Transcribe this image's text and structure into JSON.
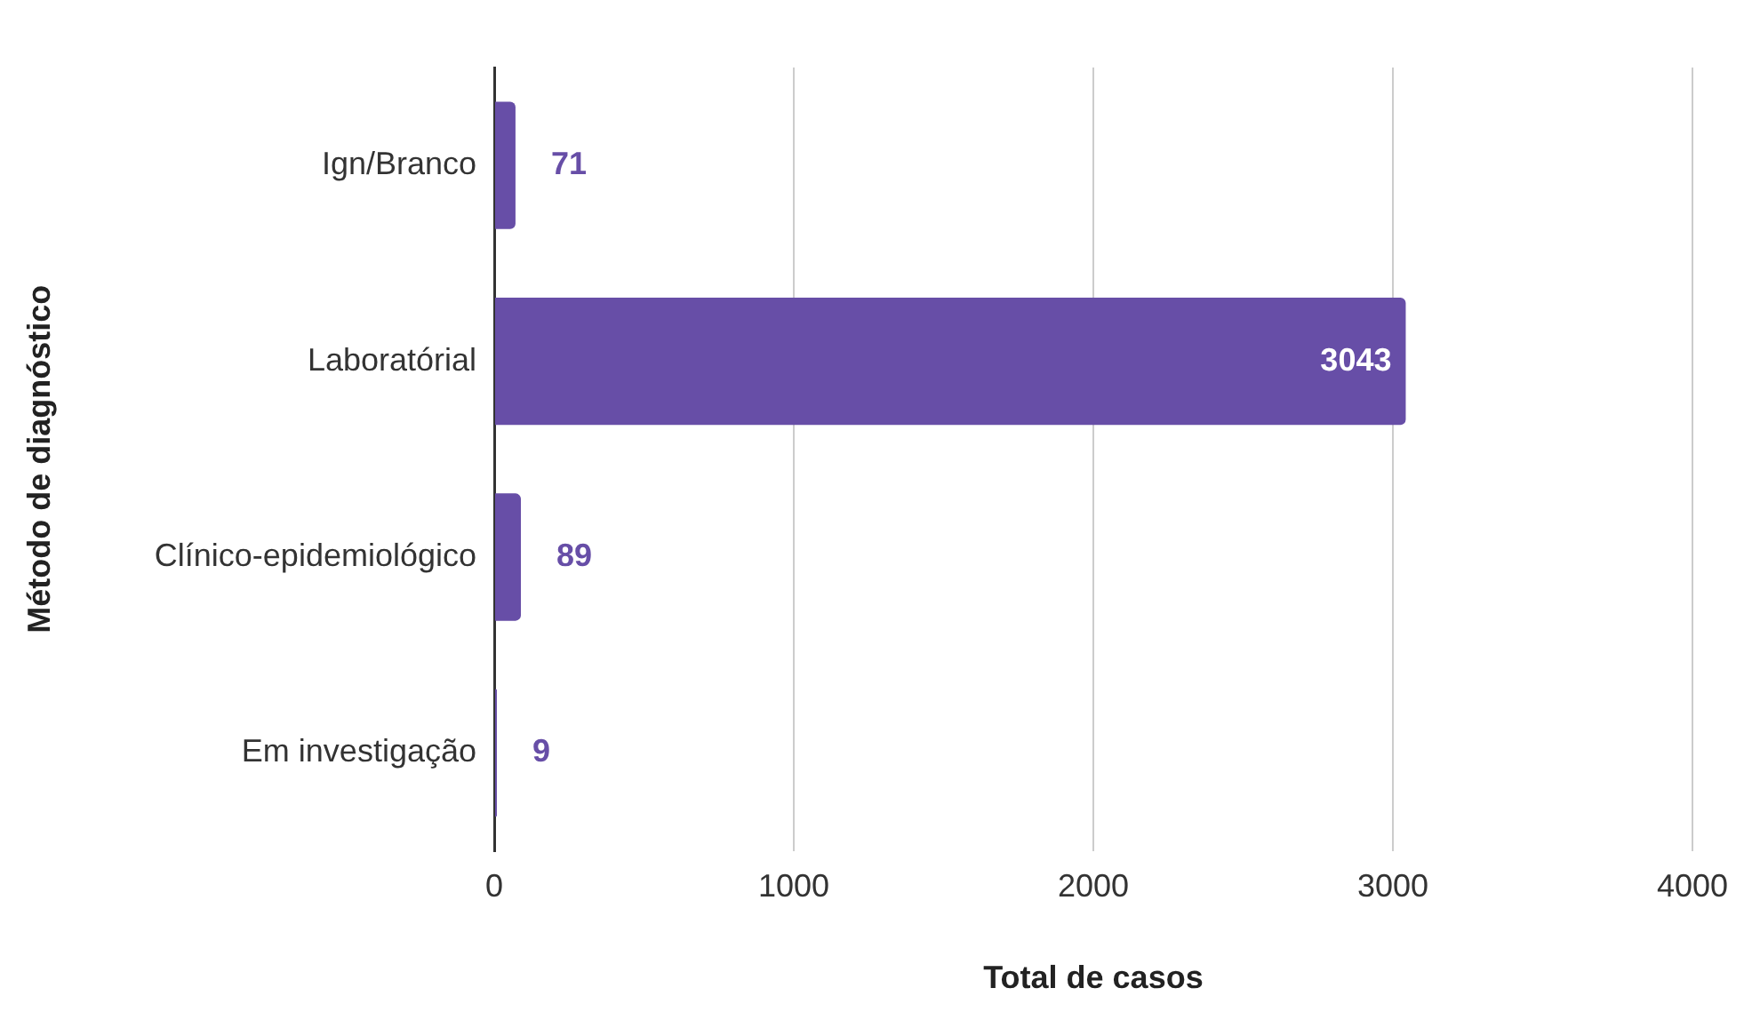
{
  "chart_data": {
    "type": "bar",
    "orientation": "horizontal",
    "xlabel": "Total de casos",
    "ylabel": "Método de diagnóstico",
    "categories": [
      "Ign/Branco",
      "Laboratórial",
      "Clínico-epidemiológico",
      "Em investigação"
    ],
    "series": [
      {
        "color": "#674ea7",
        "values": [
          71,
          3043,
          89,
          9
        ]
      }
    ],
    "xlim": [
      0,
      4000
    ],
    "xticks": [
      0,
      1000,
      2000,
      3000,
      4000
    ],
    "grid": "x",
    "data_labels": true,
    "legend": false
  }
}
